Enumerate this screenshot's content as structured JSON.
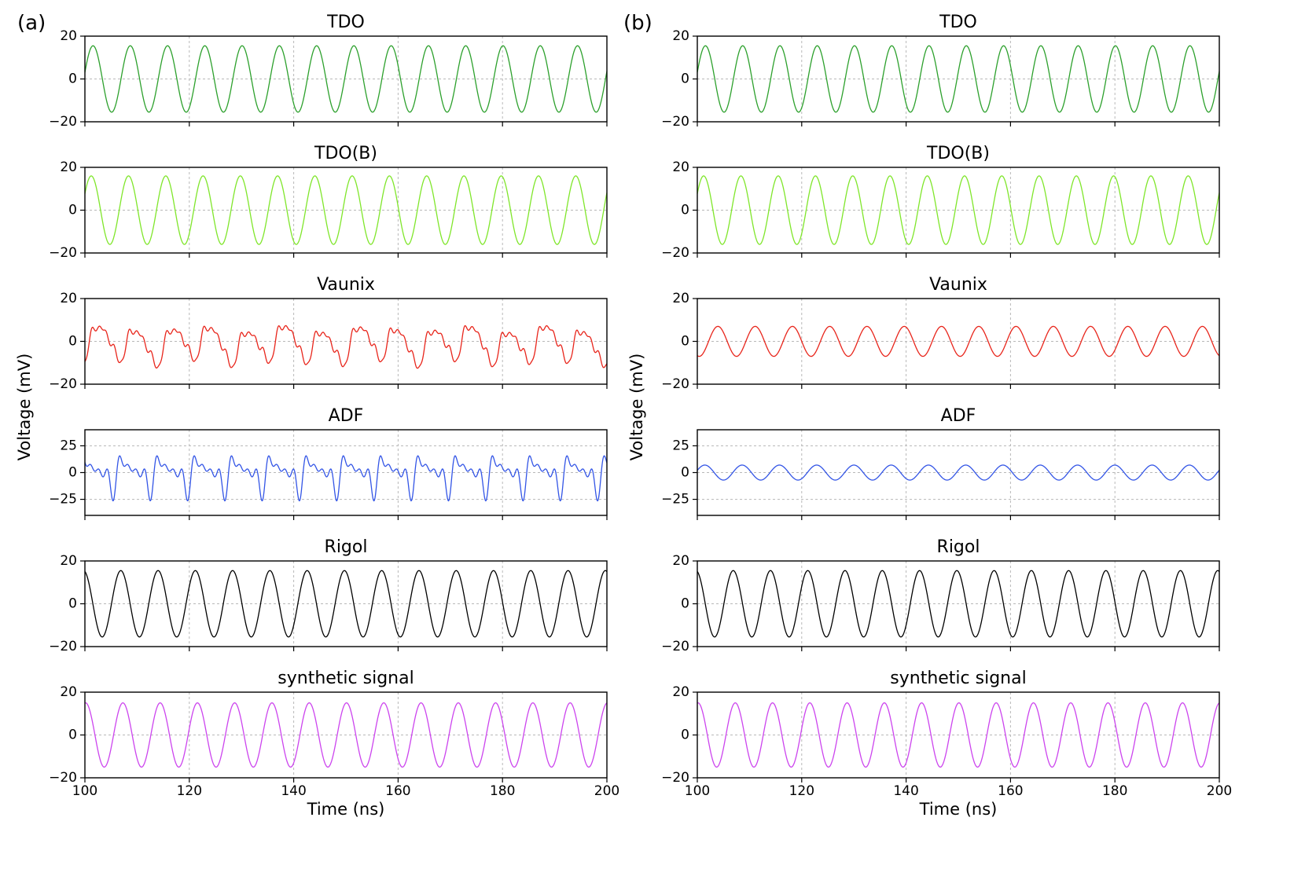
{
  "figure": {
    "y_axis_label": "Voltage (mV)",
    "x_axis_label": "Time (ns)"
  },
  "chart_data": [
    {
      "panel_label": "(a)",
      "type": "line",
      "xlim": [
        100,
        200
      ],
      "x_ticks": [
        100,
        120,
        140,
        160,
        180,
        200
      ],
      "xlabel": "Time (ns)",
      "ylabel": "Voltage (mV)",
      "grid": true,
      "subplots": [
        {
          "title": "TDO",
          "color": "#2ca02c",
          "ylim": [
            -20,
            20
          ],
          "y_ticks": [
            20,
            0,
            -20
          ],
          "period_ns": 7.14,
          "amplitude_mv": 15.5,
          "phase_rad": 0.2,
          "distortion": "none"
        },
        {
          "title": "TDO(B)",
          "color": "#7fe62a",
          "ylim": [
            -20,
            20
          ],
          "y_ticks": [
            20,
            0,
            -20
          ],
          "period_ns": 7.14,
          "amplitude_mv": 16,
          "phase_rad": 0.5,
          "distortion": "none"
        },
        {
          "title": "Vaunix",
          "color": "#e8251b",
          "ylim": [
            -20,
            20
          ],
          "y_ticks": [
            20,
            0,
            -20
          ],
          "period_ns": 7.14,
          "amplitude_mv": 7.5,
          "phase_rad": -0.9,
          "distortion": "harmonics"
        },
        {
          "title": "ADF",
          "color": "#3355e6",
          "ylim": [
            -40,
            40
          ],
          "y_ticks": [
            25,
            0,
            -25
          ],
          "period_ns": 7.14,
          "amplitude_mv": 9,
          "phase_rad": 0.6,
          "distortion": "strong-harmonics"
        },
        {
          "title": "Rigol",
          "color": "#000000",
          "ylim": [
            -20,
            20
          ],
          "y_ticks": [
            20,
            0,
            -20
          ],
          "period_ns": 7.14,
          "amplitude_mv": 15.5,
          "phase_rad": 1.8,
          "distortion": "none"
        },
        {
          "title": "synthetic signal",
          "color": "#cc44ee",
          "ylim": [
            -20,
            20
          ],
          "y_ticks": [
            20,
            0,
            -20
          ],
          "period_ns": 7.14,
          "amplitude_mv": 15,
          "phase_rad": 1.45,
          "distortion": "none"
        }
      ]
    },
    {
      "panel_label": "(b)",
      "type": "line",
      "xlim": [
        100,
        200
      ],
      "x_ticks": [
        100,
        120,
        140,
        160,
        180,
        200
      ],
      "xlabel": "Time (ns)",
      "ylabel": "Voltage (mV)",
      "grid": true,
      "subplots": [
        {
          "title": "TDO",
          "color": "#2ca02c",
          "ylim": [
            -20,
            20
          ],
          "y_ticks": [
            20,
            0,
            -20
          ],
          "period_ns": 7.14,
          "amplitude_mv": 15.5,
          "phase_rad": 0.2,
          "distortion": "none"
        },
        {
          "title": "TDO(B)",
          "color": "#7fe62a",
          "ylim": [
            -20,
            20
          ],
          "y_ticks": [
            20,
            0,
            -20
          ],
          "period_ns": 7.14,
          "amplitude_mv": 16,
          "phase_rad": 0.5,
          "distortion": "none"
        },
        {
          "title": "Vaunix",
          "color": "#e8251b",
          "ylim": [
            -20,
            20
          ],
          "y_ticks": [
            20,
            0,
            -20
          ],
          "period_ns": 7.14,
          "amplitude_mv": 7,
          "phase_rad": -1.9,
          "distortion": "none"
        },
        {
          "title": "ADF",
          "color": "#3355e6",
          "ylim": [
            -40,
            40
          ],
          "y_ticks": [
            25,
            0,
            -25
          ],
          "period_ns": 7.14,
          "amplitude_mv": 7,
          "phase_rad": 0.3,
          "distortion": "none"
        },
        {
          "title": "Rigol",
          "color": "#000000",
          "ylim": [
            -20,
            20
          ],
          "y_ticks": [
            20,
            0,
            -20
          ],
          "period_ns": 7.14,
          "amplitude_mv": 15.5,
          "phase_rad": 1.8,
          "distortion": "none"
        },
        {
          "title": "synthetic signal",
          "color": "#cc44ee",
          "ylim": [
            -20,
            20
          ],
          "y_ticks": [
            20,
            0,
            -20
          ],
          "period_ns": 7.14,
          "amplitude_mv": 15,
          "phase_rad": 1.45,
          "distortion": "none"
        }
      ]
    }
  ]
}
